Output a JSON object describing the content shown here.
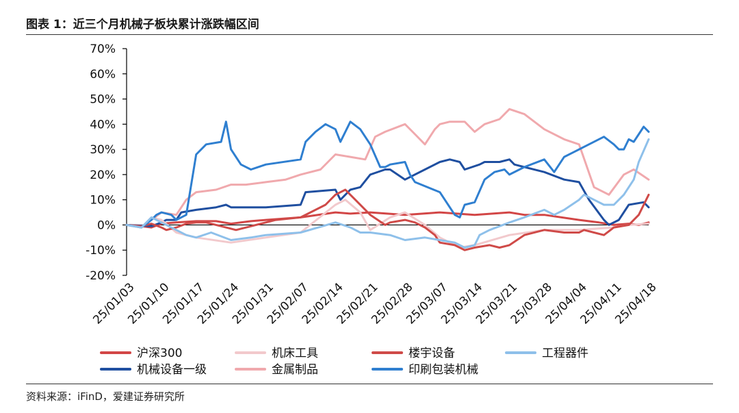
{
  "header": {
    "title": "图表 1：近三个月机械子板块累计涨跌幅区间"
  },
  "footer": {
    "source": "资料来源：iFinD，爱建证券研究所"
  },
  "chart_data": {
    "type": "line",
    "title": "近三个月机械子板块累计涨跌幅区间",
    "xlabel": "",
    "ylabel": "",
    "ylim": [
      -20,
      70
    ],
    "yticks": [
      -20,
      -10,
      0,
      10,
      20,
      30,
      40,
      50,
      60,
      70
    ],
    "ytick_labels": [
      "-20%",
      "-10%",
      "0%",
      "10%",
      "20%",
      "30%",
      "40%",
      "50%",
      "60%",
      "70%"
    ],
    "x_range": [
      0,
      105
    ],
    "x_tick_labels": [
      "25/01/03",
      "25/01/10",
      "25/01/17",
      "25/01/24",
      "25/01/31",
      "25/02/07",
      "25/02/14",
      "25/02/21",
      "25/02/28",
      "25/03/07",
      "25/03/14",
      "25/03/21",
      "25/03/28",
      "25/04/04",
      "25/04/11",
      "25/04/18"
    ],
    "x_tick_days": [
      0,
      7,
      14,
      21,
      28,
      35,
      42,
      49,
      56,
      63,
      70,
      77,
      84,
      91,
      98,
      105
    ],
    "grid": false,
    "legend_position": "bottom",
    "series": [
      {
        "name": "沪深300",
        "color": "#d24646",
        "x": [
          0,
          3,
          5,
          7,
          10,
          14,
          18,
          21,
          25,
          28,
          35,
          42,
          45,
          49,
          56,
          63,
          70,
          77,
          80,
          84,
          91,
          95,
          98,
          101,
          103,
          105
        ],
        "y": [
          0,
          -0.5,
          -1,
          0.5,
          1,
          1.5,
          1.5,
          0.5,
          1.5,
          2,
          3,
          5,
          4.5,
          5,
          4,
          5,
          4,
          5,
          4,
          4,
          2,
          1,
          0,
          0.5,
          0,
          1
        ]
      },
      {
        "name": "机械设备一级",
        "color": "#1f4fa0",
        "x": [
          0,
          5,
          7,
          8,
          10,
          11,
          14,
          18,
          20,
          21,
          28,
          35,
          36,
          42,
          43,
          45,
          47,
          49,
          52,
          53,
          56,
          60,
          63,
          65,
          67,
          68,
          71,
          72,
          75,
          77,
          78,
          84,
          88,
          91,
          93,
          96,
          97,
          99,
          101,
          104,
          105
        ],
        "y": [
          0,
          -0.5,
          1,
          2,
          2,
          5,
          6,
          7,
          8,
          7,
          7,
          8,
          13,
          14,
          10,
          14,
          15,
          20,
          22,
          22,
          18,
          22,
          25,
          26,
          25,
          22,
          24,
          25,
          25,
          26,
          24,
          21,
          18,
          17,
          10,
          2,
          0,
          2,
          8,
          9,
          7
        ]
      },
      {
        "name": "机床工具",
        "color": "#f2c9cc",
        "x": [
          0,
          3,
          5,
          7,
          10,
          14,
          21,
          28,
          35,
          42,
          44,
          47,
          49,
          53,
          56,
          60,
          63,
          67,
          70,
          77,
          84,
          91,
          98,
          101,
          105
        ],
        "y": [
          0,
          -1,
          3,
          2,
          -3,
          -5,
          -7,
          -5,
          -3,
          8,
          10,
          5,
          -2,
          3,
          5,
          0,
          -5,
          -9,
          -8,
          -4,
          -2,
          -2,
          -1,
          0,
          0.5
        ]
      },
      {
        "name": "金属制品",
        "color": "#f0a9ad",
        "x": [
          0,
          3,
          5,
          7,
          10,
          12,
          14,
          18,
          21,
          24,
          28,
          32,
          35,
          39,
          42,
          45,
          48,
          50,
          52,
          56,
          58,
          60,
          62,
          63,
          65,
          68,
          70,
          72,
          75,
          77,
          80,
          84,
          88,
          91,
          94,
          97,
          100,
          102,
          105
        ],
        "y": [
          0,
          -1,
          2,
          5,
          4,
          10,
          13,
          14,
          16,
          16,
          17,
          18,
          20,
          22,
          28,
          27,
          26,
          35,
          37,
          40,
          36,
          32,
          38,
          40,
          41,
          41,
          37,
          40,
          42,
          46,
          44,
          38,
          34,
          32,
          15,
          12,
          20,
          22,
          18
        ]
      },
      {
        "name": "楼宇设备",
        "color": "#cf4a48",
        "x": [
          0,
          3,
          5,
          7,
          8,
          10,
          12,
          14,
          16,
          18,
          20,
          22,
          25,
          28,
          30,
          35,
          38,
          40,
          42,
          44,
          46,
          49,
          52,
          53,
          56,
          58,
          60,
          62,
          63,
          66,
          68,
          70,
          73,
          75,
          77,
          80,
          84,
          88,
          91,
          92,
          94,
          96,
          98,
          101,
          103,
          105
        ],
        "y": [
          0,
          -0.5,
          0.5,
          -1,
          -2,
          -1,
          0.5,
          1,
          1,
          0,
          -1,
          -2,
          -0.5,
          1,
          2,
          3,
          6,
          8,
          12,
          14,
          10,
          4,
          0,
          1,
          2,
          1,
          -1,
          -4,
          -7,
          -8,
          -10,
          -9,
          -8,
          -9,
          -8,
          -4,
          -2,
          -3,
          -3,
          -2,
          -3,
          -4,
          -1,
          0,
          4,
          12
        ]
      },
      {
        "name": "印刷包装机械",
        "color": "#2f7fd0",
        "x": [
          0,
          3,
          5,
          6,
          7,
          9,
          10,
          12,
          14,
          16,
          19,
          20,
          21,
          23,
          25,
          28,
          35,
          36,
          38,
          40,
          42,
          43,
          45,
          47,
          49,
          51,
          52,
          53,
          56,
          57,
          58,
          63,
          66,
          67,
          68,
          70,
          72,
          74,
          76,
          77,
          80,
          84,
          86,
          88,
          90,
          91,
          92,
          96,
          98,
          99,
          100,
          101,
          102,
          103,
          104,
          105
        ],
        "y": [
          0,
          -1,
          2,
          4,
          5,
          4,
          2,
          4,
          28,
          32,
          33,
          41,
          30,
          24,
          22,
          24,
          26,
          33,
          37,
          40,
          38,
          33,
          41,
          38,
          32,
          23,
          23,
          24,
          25,
          20,
          17,
          13,
          4,
          3,
          8,
          9,
          18,
          21,
          22,
          20,
          23,
          26,
          21,
          27,
          29,
          30,
          31,
          35,
          32,
          30,
          30,
          34,
          33,
          36,
          39,
          37
        ]
      },
      {
        "name": "工程器件",
        "color": "#8ec0ea",
        "x": [
          0,
          3,
          5,
          7,
          10,
          12,
          14,
          17,
          21,
          25,
          28,
          35,
          42,
          45,
          47,
          49,
          53,
          56,
          60,
          63,
          66,
          68,
          70,
          71,
          73,
          77,
          80,
          84,
          86,
          88,
          91,
          92,
          94,
          96,
          98,
          100,
          102,
          103,
          105
        ],
        "y": [
          0,
          -1,
          3,
          1,
          -2,
          -4,
          -5,
          -3,
          -6,
          -5,
          -4,
          -3,
          1,
          -1,
          -3,
          -3,
          -4,
          -6,
          -5,
          -6,
          -7,
          -9,
          -8,
          -4,
          -2,
          1,
          3,
          6,
          4,
          6,
          10,
          12,
          10,
          8,
          8,
          12,
          18,
          25,
          34
        ]
      }
    ]
  }
}
